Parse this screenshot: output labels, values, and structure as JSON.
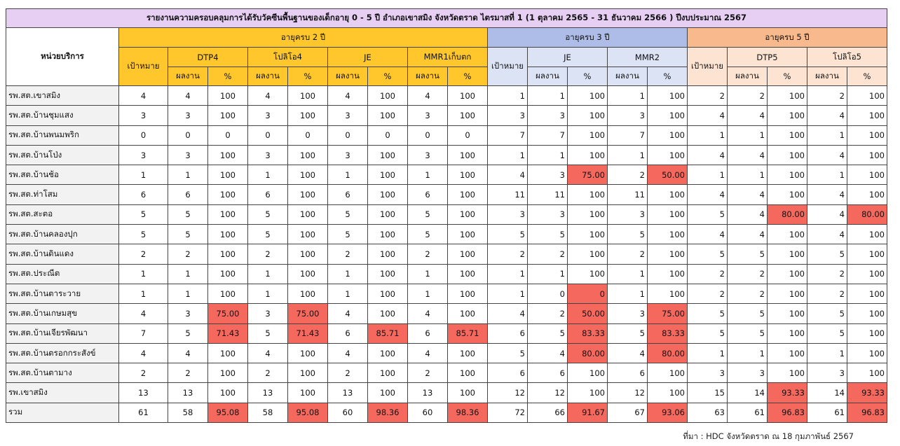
{
  "title": "รายงานความครอบคลุมการได้รับวัคซีนพื้นฐานของเด็กอายุ 0 - 5 ปี อำเภอเขาสมิง จังหวัดตราด ไตรมาสที่ 1 (1 ตุลาคม 2565 - 31 ธันวาคม 2566 ) ปีงบประมาณ 2567",
  "headers": {
    "unit": "หน่วยบริการ",
    "age2": "อายุครบ 2 ปี",
    "age3": "อายุครบ 3 ปี",
    "age5": "อายุครบ 5 ปี",
    "target": "เป้าหมาย",
    "result": "ผลงาน",
    "percent": "%",
    "vac_dtp4": "DTP4",
    "vac_polio4": "โปลิโอ4",
    "vac_je2": "JE",
    "vac_mmr1": "MMR1เก็บตก",
    "vac_je3": "JE",
    "vac_mmr2": "MMR2",
    "vac_dtp5": "DTP5",
    "vac_polio5": "โปลิโอ5"
  },
  "rows": [
    {
      "unit": "รพ.สต.เขาสมิง",
      "c": [
        "4",
        "4",
        "100",
        "4",
        "100",
        "4",
        "100",
        "4",
        "100",
        "1",
        "1",
        "100",
        "1",
        "100",
        "2",
        "2",
        "100",
        "2",
        "100"
      ]
    },
    {
      "unit": "รพ.สต.บ้านชุมแสง",
      "c": [
        "3",
        "3",
        "100",
        "3",
        "100",
        "3",
        "100",
        "3",
        "100",
        "3",
        "3",
        "100",
        "3",
        "100",
        "4",
        "4",
        "100",
        "4",
        "100"
      ]
    },
    {
      "unit": "รพ.สต.บ้านพนมพริก",
      "c": [
        "0",
        "0",
        "0",
        "0",
        "0",
        "0",
        "0",
        "0",
        "0",
        "7",
        "7",
        "100",
        "7",
        "100",
        "1",
        "1",
        "100",
        "1",
        "100"
      ]
    },
    {
      "unit": "รพ.สต.บ้านโป่ง",
      "c": [
        "3",
        "3",
        "100",
        "3",
        "100",
        "3",
        "100",
        "3",
        "100",
        "1",
        "1",
        "100",
        "1",
        "100",
        "4",
        "4",
        "100",
        "4",
        "100"
      ]
    },
    {
      "unit": "รพ.สต.บ้านช้อ",
      "c": [
        "1",
        "1",
        "100",
        "1",
        "100",
        "1",
        "100",
        "1",
        "100",
        "4",
        "3",
        "75.00",
        "2",
        "50.00",
        "1",
        "1",
        "100",
        "1",
        "100"
      ]
    },
    {
      "unit": "รพ.สต.ท่าโสม",
      "c": [
        "6",
        "6",
        "100",
        "6",
        "100",
        "6",
        "100",
        "6",
        "100",
        "11",
        "11",
        "100",
        "11",
        "100",
        "4",
        "4",
        "100",
        "4",
        "100"
      ]
    },
    {
      "unit": "รพ.สต.สะตอ",
      "c": [
        "5",
        "5",
        "100",
        "5",
        "100",
        "5",
        "100",
        "5",
        "100",
        "3",
        "3",
        "100",
        "3",
        "100",
        "5",
        "4",
        "80.00",
        "4",
        "80.00"
      ]
    },
    {
      "unit": "รพ.สต.บ้านคลองปุก",
      "c": [
        "5",
        "5",
        "100",
        "5",
        "100",
        "5",
        "100",
        "5",
        "100",
        "5",
        "5",
        "100",
        "5",
        "100",
        "4",
        "4",
        "100",
        "4",
        "100"
      ]
    },
    {
      "unit": "รพ.สต.บ้านดินแดง",
      "c": [
        "2",
        "2",
        "100",
        "2",
        "100",
        "2",
        "100",
        "2",
        "100",
        "2",
        "2",
        "100",
        "2",
        "100",
        "5",
        "5",
        "100",
        "5",
        "100"
      ]
    },
    {
      "unit": "รพ.สต.ประณีต",
      "c": [
        "1",
        "1",
        "100",
        "1",
        "100",
        "1",
        "100",
        "1",
        "100",
        "1",
        "1",
        "100",
        "1",
        "100",
        "2",
        "2",
        "100",
        "2",
        "100"
      ]
    },
    {
      "unit": "รพ.สต.บ้านตาระวาย",
      "c": [
        "1",
        "1",
        "100",
        "1",
        "100",
        "1",
        "100",
        "1",
        "100",
        "1",
        "0",
        "0",
        "1",
        "100",
        "2",
        "2",
        "100",
        "2",
        "100"
      ]
    },
    {
      "unit": "รพ.สต.บ้านเกษมสุข",
      "c": [
        "4",
        "3",
        "75.00",
        "3",
        "75.00",
        "4",
        "100",
        "4",
        "100",
        "4",
        "2",
        "50.00",
        "3",
        "75.00",
        "5",
        "5",
        "100",
        "5",
        "100"
      ]
    },
    {
      "unit": "รพ.สต.บ้านเจียรพัฒนา",
      "c": [
        "7",
        "5",
        "71.43",
        "5",
        "71.43",
        "6",
        "85.71",
        "6",
        "85.71",
        "6",
        "5",
        "83.33",
        "5",
        "83.33",
        "5",
        "5",
        "100",
        "5",
        "100"
      ]
    },
    {
      "unit": "รพ.สต.บ้านตรอกกระสังข์",
      "c": [
        "4",
        "4",
        "100",
        "4",
        "100",
        "4",
        "100",
        "4",
        "100",
        "5",
        "4",
        "80.00",
        "4",
        "80.00",
        "1",
        "1",
        "100",
        "1",
        "100"
      ]
    },
    {
      "unit": "รพ.สต.บ้านตามาง",
      "c": [
        "2",
        "2",
        "100",
        "2",
        "100",
        "2",
        "100",
        "2",
        "100",
        "6",
        "6",
        "100",
        "6",
        "100",
        "3",
        "3",
        "100",
        "3",
        "100"
      ]
    },
    {
      "unit": "รพ.เขาสมิง",
      "c": [
        "13",
        "13",
        "100",
        "13",
        "100",
        "13",
        "100",
        "13",
        "100",
        "12",
        "12",
        "100",
        "12",
        "100",
        "15",
        "14",
        "93.33",
        "14",
        "93.33"
      ]
    },
    {
      "unit": "รวม",
      "c": [
        "61",
        "58",
        "95.08",
        "58",
        "95.08",
        "60",
        "98.36",
        "60",
        "98.36",
        "72",
        "66",
        "91.67",
        "67",
        "93.06",
        "63",
        "61",
        "96.83",
        "61",
        "96.83"
      ]
    }
  ],
  "source": "ที่มา : HDC จังหวัดตราด ณ 18 กุมภาพันธ์ 2567",
  "colors": {
    "title_bg": "#e6cff3",
    "age2_bg": "#ffc72c",
    "age3_bg": "#aebde8",
    "age5_bg": "#f8b98c",
    "below_target": "#f4685e"
  }
}
